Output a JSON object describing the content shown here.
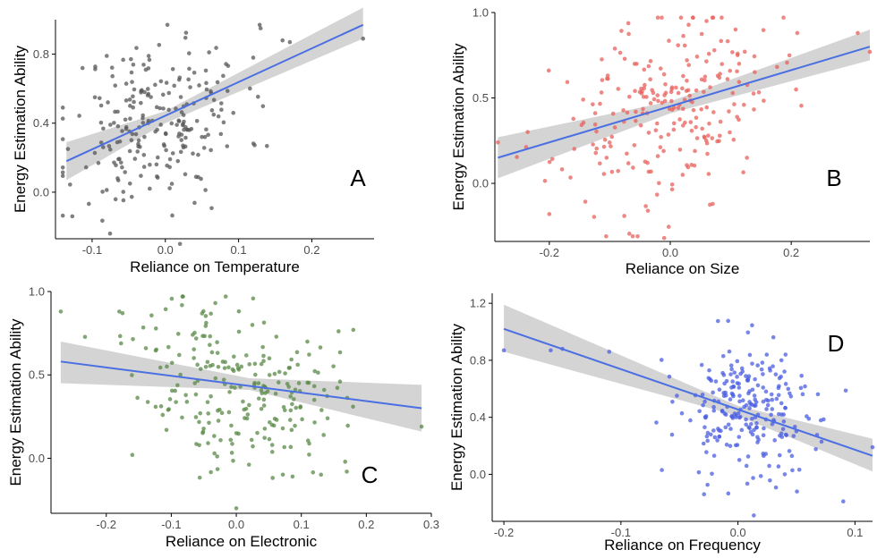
{
  "chart_data": [
    {
      "type": "scatter",
      "panel_label": "A",
      "xlabel": "Reliance on Temperature",
      "ylabel": "Energy Estimation Ability",
      "xlim": [
        -0.15,
        0.285
      ],
      "ylim": [
        -0.27,
        1.0
      ],
      "xticks": [
        -0.1,
        0.0,
        0.1,
        0.2
      ],
      "xtick_labels": [
        "-0.1",
        "0.0",
        "0.1",
        "0.2"
      ],
      "yticks": [
        0.0,
        0.4,
        0.8
      ],
      "ytick_labels": [
        "0.0",
        "0.4",
        "0.8"
      ],
      "point_color": "#555555",
      "trend": {
        "x": [
          -0.135,
          0.27
        ],
        "y": [
          0.18,
          0.97
        ],
        "color": "#4a6fe3"
      },
      "band": {
        "x": [
          -0.135,
          0.0,
          0.27
        ],
        "lower": [
          0.07,
          0.4,
          0.89
        ],
        "upper": [
          0.29,
          0.47,
          1.07
        ]
      },
      "points": {
        "n": 230,
        "x_center": -0.01,
        "x_spread": 0.06,
        "y_center": 0.41,
        "y_spread": 0.27,
        "seed": 11,
        "extra": [
          [
            -0.133,
            0.25
          ],
          [
            -0.127,
            -0.14
          ],
          [
            0.12,
            0.78
          ],
          [
            0.16,
            0.88
          ],
          [
            0.17,
            0.87
          ],
          [
            0.27,
            0.89
          ],
          [
            0.02,
            -0.3
          ],
          [
            -0.08,
            0.79
          ]
        ]
      }
    },
    {
      "type": "scatter",
      "panel_label": "B",
      "xlabel": "Reliance on Size",
      "ylabel": "Energy Estimation Ability",
      "xlim": [
        -0.29,
        0.33
      ],
      "ylim": [
        -0.34,
        1.0
      ],
      "xticks": [
        -0.2,
        0.0,
        0.2
      ],
      "xtick_labels": [
        "-0.2",
        "0.0",
        "0.2"
      ],
      "yticks": [
        0.0,
        0.5,
        1.0
      ],
      "ytick_labels": [
        "0.0",
        "0.5",
        "1.0"
      ],
      "point_color": "#e8605b",
      "trend": {
        "x": [
          -0.285,
          0.33
        ],
        "y": [
          0.15,
          0.8
        ],
        "color": "#4a6fe3"
      },
      "band": {
        "x": [
          -0.285,
          0.0,
          0.33
        ],
        "lower": [
          0.03,
          0.41,
          0.72
        ],
        "upper": [
          0.27,
          0.48,
          0.9
        ]
      },
      "points": {
        "n": 240,
        "x_center": -0.01,
        "x_spread": 0.09,
        "y_center": 0.42,
        "y_spread": 0.3,
        "seed": 23,
        "extra": [
          [
            -0.285,
            0.24
          ],
          [
            -0.2,
            -0.18
          ],
          [
            0.31,
            0.88
          ],
          [
            0.33,
            0.77
          ],
          [
            0.21,
            0.88
          ],
          [
            0.06,
            0.95
          ],
          [
            -0.01,
            -0.32
          ]
        ]
      }
    },
    {
      "type": "scatter",
      "panel_label": "C",
      "xlabel": "Reliance on Electronic",
      "ylabel": "Energy Estimation Ability",
      "xlim": [
        -0.285,
        0.3
      ],
      "ylim": [
        -0.33,
        1.0
      ],
      "xticks": [
        -0.2,
        -0.1,
        0.0,
        0.1,
        0.2,
        0.3
      ],
      "xtick_labels": [
        "-0.2",
        "-0.1",
        "0.0",
        "0.1",
        "0.2",
        "0.3"
      ],
      "yticks": [
        0.0,
        0.5,
        1.0
      ],
      "ytick_labels": [
        "0.0",
        "0.5",
        "1.0"
      ],
      "point_color": "#5a8a45",
      "trend": {
        "x": [
          -0.27,
          0.285
        ],
        "y": [
          0.58,
          0.3
        ],
        "color": "#4a6fe3"
      },
      "band": {
        "x": [
          -0.27,
          0.02,
          0.285
        ],
        "lower": [
          0.45,
          0.41,
          0.16
        ],
        "upper": [
          0.7,
          0.48,
          0.44
        ]
      },
      "points": {
        "n": 235,
        "x_center": 0.0,
        "x_spread": 0.075,
        "y_center": 0.44,
        "y_spread": 0.28,
        "seed": 37,
        "extra": [
          [
            -0.27,
            0.88
          ],
          [
            -0.18,
            0.88
          ],
          [
            -0.175,
            0.87
          ],
          [
            0.18,
            0.77
          ],
          [
            0.285,
            0.19
          ],
          [
            0.17,
            -0.08
          ],
          [
            0.0,
            -0.3
          ],
          [
            -0.16,
            0.02
          ]
        ]
      }
    },
    {
      "type": "scatter",
      "panel_label": "D",
      "xlabel": "Reliance on Frequency",
      "ylabel": "Energy Estimation Ability",
      "xlim": [
        -0.21,
        0.115
      ],
      "ylim": [
        -0.33,
        1.27
      ],
      "xticks": [
        -0.2,
        -0.1,
        0.0,
        0.1
      ],
      "xtick_labels": [
        "-0.2",
        "-0.1",
        "0.0",
        "0.1"
      ],
      "yticks": [
        0.0,
        0.4,
        0.8,
        1.2
      ],
      "ytick_labels": [
        "0.0",
        "0.4",
        "0.8",
        "1.2"
      ],
      "point_color": "#4a5de0",
      "trend": {
        "x": [
          -0.2,
          0.115
        ],
        "y": [
          1.02,
          0.13
        ],
        "color": "#4a6fe3"
      },
      "band": {
        "x": [
          -0.2,
          0.0,
          0.115
        ],
        "lower": [
          0.86,
          0.41,
          0.02
        ],
        "upper": [
          1.19,
          0.48,
          0.25
        ]
      },
      "points": {
        "n": 240,
        "x_center": 0.01,
        "x_spread": 0.03,
        "y_center": 0.43,
        "y_spread": 0.28,
        "seed": 53,
        "extra": [
          [
            -0.2,
            0.87
          ],
          [
            -0.16,
            0.87
          ],
          [
            -0.15,
            0.88
          ],
          [
            -0.11,
            0.86
          ],
          [
            0.115,
            0.19
          ],
          [
            0.09,
            -0.19
          ],
          [
            0.04,
            0.0
          ],
          [
            -0.065,
            0.03
          ]
        ]
      }
    }
  ]
}
